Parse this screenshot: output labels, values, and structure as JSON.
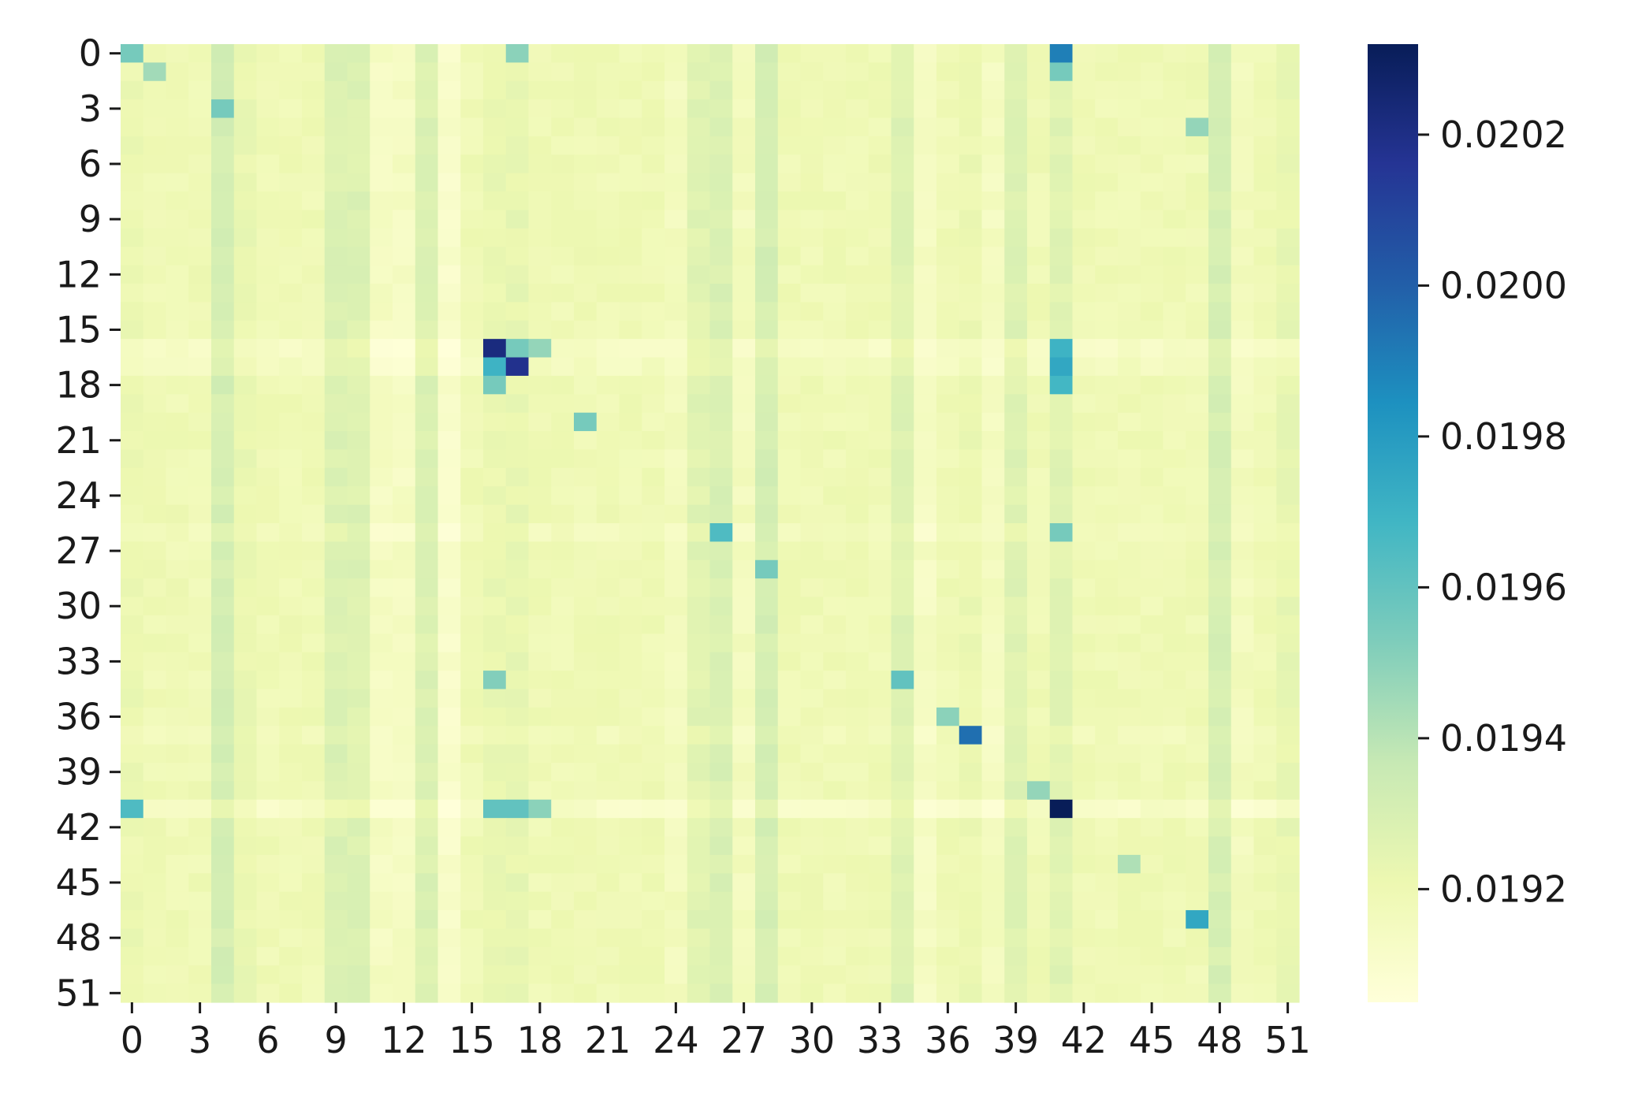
{
  "chart_data": {
    "type": "heatmap",
    "title": "",
    "xlabel": "",
    "ylabel": "",
    "n_rows": 52,
    "n_cols": 52,
    "x_tick_labels": [
      "0",
      "3",
      "6",
      "9",
      "12",
      "15",
      "18",
      "21",
      "24",
      "27",
      "30",
      "33",
      "36",
      "39",
      "42",
      "45",
      "48",
      "51"
    ],
    "y_tick_labels": [
      "0",
      "3",
      "6",
      "9",
      "12",
      "15",
      "18",
      "21",
      "24",
      "27",
      "30",
      "33",
      "36",
      "39",
      "42",
      "45",
      "48",
      "51"
    ],
    "colormap": "YlGnBu",
    "colormap_stops": [
      "#ffffd9",
      "#edf8b1",
      "#c7e9b4",
      "#7fcdbb",
      "#41b6c4",
      "#1d91c0",
      "#225ea8",
      "#253494",
      "#081d58"
    ],
    "value_range": [
      0.01905,
      0.02032
    ],
    "base_value": 0.01919,
    "column_offsets": [
      {
        "col": 0,
        "delta": 2e-05
      },
      {
        "col": 4,
        "delta": 0.00012
      },
      {
        "col": 5,
        "delta": 3e-05
      },
      {
        "col": 9,
        "delta": 9e-05
      },
      {
        "col": 10,
        "delta": 9e-05
      },
      {
        "col": 11,
        "delta": -5e-05
      },
      {
        "col": 12,
        "delta": -5e-05
      },
      {
        "col": 13,
        "delta": 9e-05
      },
      {
        "col": 14,
        "delta": -8e-05
      },
      {
        "col": 16,
        "delta": 3e-05
      },
      {
        "col": 17,
        "delta": 4e-05
      },
      {
        "col": 24,
        "delta": -3e-05
      },
      {
        "col": 25,
        "delta": 7e-05
      },
      {
        "col": 26,
        "delta": 0.0001
      },
      {
        "col": 27,
        "delta": -3e-05
      },
      {
        "col": 28,
        "delta": 0.00012
      },
      {
        "col": 34,
        "delta": 8e-05
      },
      {
        "col": 35,
        "delta": -5e-05
      },
      {
        "col": 37,
        "delta": 2e-05
      },
      {
        "col": 38,
        "delta": -4e-05
      },
      {
        "col": 39,
        "delta": 8e-05
      },
      {
        "col": 41,
        "delta": 7e-05
      },
      {
        "col": 48,
        "delta": 0.00011
      },
      {
        "col": 49,
        "delta": -3e-05
      },
      {
        "col": 51,
        "delta": 4e-05
      }
    ],
    "row_offsets": [
      {
        "row": 16,
        "delta": -6e-05
      },
      {
        "row": 17,
        "delta": -4e-05
      },
      {
        "row": 26,
        "delta": -3e-05
      },
      {
        "row": 37,
        "delta": -2e-05
      },
      {
        "row": 41,
        "delta": -7e-05
      }
    ],
    "highlight_cells": [
      {
        "row": 0,
        "col": 0,
        "value": 0.01955
      },
      {
        "row": 0,
        "col": 17,
        "value": 0.0195
      },
      {
        "row": 0,
        "col": 41,
        "value": 0.0199
      },
      {
        "row": 1,
        "col": 1,
        "value": 0.01945
      },
      {
        "row": 1,
        "col": 41,
        "value": 0.01955
      },
      {
        "row": 3,
        "col": 4,
        "value": 0.01955
      },
      {
        "row": 4,
        "col": 47,
        "value": 0.01948
      },
      {
        "row": 16,
        "col": 16,
        "value": 0.02022
      },
      {
        "row": 16,
        "col": 17,
        "value": 0.01955
      },
      {
        "row": 16,
        "col": 18,
        "value": 0.01948
      },
      {
        "row": 16,
        "col": 41,
        "value": 0.0197
      },
      {
        "row": 17,
        "col": 16,
        "value": 0.0197
      },
      {
        "row": 17,
        "col": 17,
        "value": 0.02018
      },
      {
        "row": 17,
        "col": 41,
        "value": 0.01975
      },
      {
        "row": 18,
        "col": 16,
        "value": 0.01955
      },
      {
        "row": 18,
        "col": 41,
        "value": 0.01968
      },
      {
        "row": 20,
        "col": 20,
        "value": 0.01955
      },
      {
        "row": 26,
        "col": 26,
        "value": 0.01965
      },
      {
        "row": 26,
        "col": 41,
        "value": 0.01955
      },
      {
        "row": 28,
        "col": 28,
        "value": 0.01955
      },
      {
        "row": 34,
        "col": 16,
        "value": 0.01952
      },
      {
        "row": 34,
        "col": 34,
        "value": 0.0196
      },
      {
        "row": 36,
        "col": 36,
        "value": 0.0195
      },
      {
        "row": 37,
        "col": 37,
        "value": 0.01995
      },
      {
        "row": 40,
        "col": 40,
        "value": 0.01948
      },
      {
        "row": 41,
        "col": 0,
        "value": 0.01965
      },
      {
        "row": 41,
        "col": 16,
        "value": 0.0196
      },
      {
        "row": 41,
        "col": 17,
        "value": 0.0196
      },
      {
        "row": 41,
        "col": 18,
        "value": 0.0195
      },
      {
        "row": 41,
        "col": 41,
        "value": 0.02032
      },
      {
        "row": 44,
        "col": 44,
        "value": 0.01942
      },
      {
        "row": 47,
        "col": 47,
        "value": 0.01975
      }
    ],
    "colorbar_ticks": [
      "0.0192",
      "0.0194",
      "0.0196",
      "0.0198",
      "0.0200",
      "0.0202"
    ],
    "colorbar_tick_values": [
      0.0192,
      0.0194,
      0.0196,
      0.0198,
      0.02,
      0.0202
    ]
  }
}
